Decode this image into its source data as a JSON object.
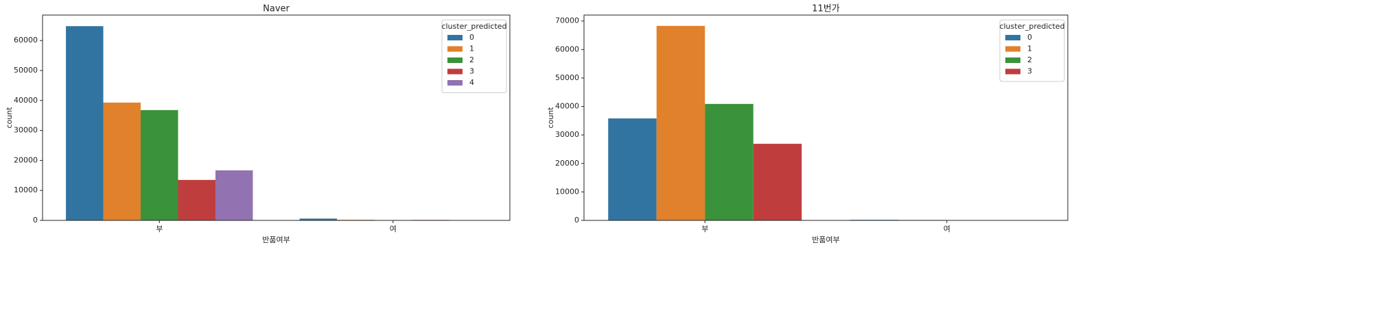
{
  "chart_data": [
    {
      "type": "bar",
      "title": "Naver",
      "xlabel": "반품여부",
      "ylabel": "count",
      "categories": [
        "부",
        "여"
      ],
      "legend_title": "cluster_predicted",
      "legend": "upper right",
      "series": [
        {
          "name": "0",
          "color": "#3274a1",
          "values": [
            64800,
            600
          ]
        },
        {
          "name": "1",
          "color": "#e1812c",
          "values": [
            39300,
            200
          ]
        },
        {
          "name": "2",
          "color": "#3a923a",
          "values": [
            36800,
            50
          ]
        },
        {
          "name": "3",
          "color": "#c03d3e",
          "values": [
            13500,
            150
          ]
        },
        {
          "name": "4",
          "color": "#9372b2",
          "values": [
            16700,
            100
          ]
        }
      ],
      "ylim": [
        0,
        68500
      ],
      "yticks": [
        0,
        10000,
        20000,
        30000,
        40000,
        50000,
        60000
      ]
    },
    {
      "type": "bar",
      "title": "11번가",
      "xlabel": "반품여부",
      "ylabel": "count",
      "categories": [
        "부",
        "여"
      ],
      "legend_title": "cluster_predicted",
      "legend": "upper right",
      "series": [
        {
          "name": "0",
          "color": "#3274a1",
          "values": [
            35800,
            200
          ]
        },
        {
          "name": "1",
          "color": "#e1812c",
          "values": [
            68300,
            150
          ]
        },
        {
          "name": "2",
          "color": "#3a923a",
          "values": [
            40900,
            100
          ]
        },
        {
          "name": "3",
          "color": "#c03d3e",
          "values": [
            26900,
            50
          ]
        }
      ],
      "ylim": [
        0,
        72100
      ],
      "yticks": [
        0,
        10000,
        20000,
        30000,
        40000,
        50000,
        60000,
        70000
      ]
    }
  ]
}
